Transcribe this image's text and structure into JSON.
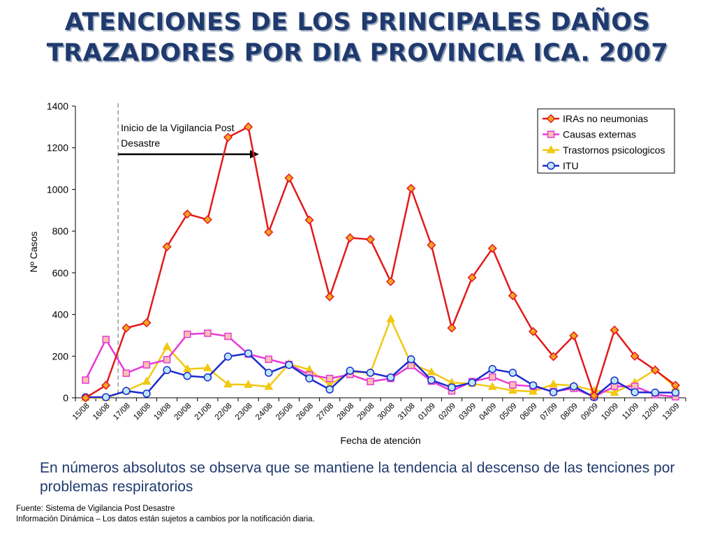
{
  "slide": {
    "title_line1": "ATENCIONES DE LOS PRINCIPALES DAÑOS",
    "title_line2": "TRAZADORES POR DIA PROVINCIA ICA. 2007",
    "summary": "En números absolutos se observa que se mantiene la tendencia al descenso de las tenciones por problemas respiratorios",
    "source": "Fuente: Sistema de Vigilancia Post Desastre",
    "note": "Información Dinámica – Los datos están sujetos a cambios por la notificación diaria."
  },
  "colors": {
    "iras": "#e31a1c",
    "iras_marker": "#f5a623",
    "causas": "#e83ad6",
    "causas_marker": "#f9c3b0",
    "trastornos": "#f2c811",
    "itu": "#1a2ccf",
    "itu_marker": "#bfe6f7"
  },
  "chart_data": {
    "type": "line",
    "title": "",
    "xlabel": "Fecha de atención",
    "ylabel": "Nº Casos",
    "ylim": [
      0,
      1400
    ],
    "yticks": [
      0,
      200,
      400,
      600,
      800,
      1000,
      1200,
      1400
    ],
    "categories": [
      "15/08",
      "16/08",
      "17/08",
      "18/08",
      "19/08",
      "20/08",
      "21/08",
      "22/08",
      "23/08",
      "24/08",
      "25/08",
      "26/08",
      "27/08",
      "28/08",
      "29/08",
      "30/08",
      "31/08",
      "01/09",
      "02/09",
      "03/09",
      "04/09",
      "05/09",
      "06/09",
      "07/09",
      "08/09",
      "09/09",
      "10/09",
      "11/09",
      "12/09",
      "13/09"
    ],
    "annotation": "Inicio de la Vigilancia Post Desastre",
    "legend_position": "top-right",
    "series": [
      {
        "name": "IRAs no neumonias",
        "marker": "diamond",
        "values": [
          0,
          60,
          335,
          360,
          725,
          882,
          855,
          1250,
          1300,
          795,
          1055,
          853,
          485,
          768,
          760,
          558,
          1005,
          733,
          335,
          577,
          717,
          490,
          318,
          198,
          298,
          10,
          325,
          200,
          133,
          60
        ]
      },
      {
        "name": "Causas externas",
        "marker": "square",
        "values": [
          85,
          280,
          118,
          158,
          183,
          305,
          310,
          295,
          210,
          185,
          160,
          110,
          93,
          112,
          78,
          93,
          155,
          80,
          33,
          78,
          100,
          62,
          55,
          30,
          45,
          5,
          55,
          55,
          15,
          5
        ]
      },
      {
        "name": "Trastornos psicologicos",
        "marker": "triangle",
        "values": [
          0,
          0,
          33,
          78,
          245,
          138,
          143,
          65,
          63,
          53,
          163,
          135,
          62,
          125,
          120,
          378,
          165,
          123,
          73,
          68,
          53,
          35,
          30,
          65,
          58,
          35,
          25,
          73,
          135,
          50
        ]
      },
      {
        "name": "ITU",
        "marker": "circle",
        "values": [
          3,
          3,
          33,
          20,
          133,
          105,
          98,
          198,
          213,
          120,
          158,
          93,
          40,
          130,
          120,
          98,
          185,
          85,
          50,
          73,
          138,
          120,
          60,
          27,
          55,
          3,
          83,
          27,
          25,
          25
        ]
      }
    ]
  }
}
